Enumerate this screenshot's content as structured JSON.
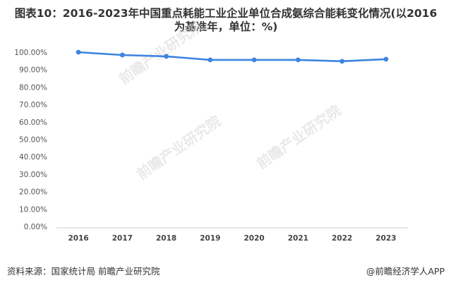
{
  "chart_data": {
    "type": "line",
    "title": "图表10：2016-2023年中国重点耗能工业企业单位合成氨综合能耗变化情况(以2016\n为基准年，单位：%)",
    "categories": [
      "2016",
      "2017",
      "2018",
      "2019",
      "2020",
      "2021",
      "2022",
      "2023"
    ],
    "series": [
      {
        "values": [
          100.0,
          98.4,
          97.6,
          95.6,
          95.6,
          95.6,
          94.8,
          96.0
        ]
      }
    ],
    "y_ticks": [
      "100.00%",
      "90.00%",
      "80.00%",
      "70.00%",
      "60.00%",
      "50.00%",
      "40.00%",
      "30.00%",
      "20.00%",
      "10.00%",
      "0.00%"
    ],
    "ylim": [
      0,
      100
    ],
    "grid": false,
    "line_color": "#3d84e0"
  },
  "footer": {
    "source": "资料来源：国家统计局 前瞻产业研究院",
    "brand": "@前瞻经济学人APP"
  },
  "watermark": {
    "text": "前瞻产业研究院"
  }
}
